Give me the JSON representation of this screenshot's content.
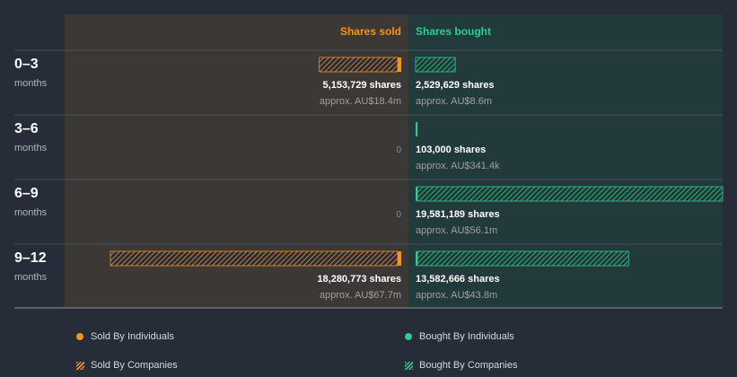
{
  "chart_data": {
    "type": "bar",
    "categories": [
      {
        "range": "0–3",
        "unit": "months"
      },
      {
        "range": "3–6",
        "unit": "months"
      },
      {
        "range": "6–9",
        "unit": "months"
      },
      {
        "range": "9–12",
        "unit": "months"
      }
    ],
    "sold_header": "Shares sold",
    "bought_header": "Shares bought",
    "sold": [
      {
        "individuals": 150000,
        "companies": 5003729,
        "shares_label": "5,153,729 shares",
        "value_label": "approx. AU$18.4m"
      },
      {
        "individuals": 0,
        "companies": 0,
        "zero_label": "0"
      },
      {
        "individuals": 0,
        "companies": 0,
        "zero_label": "0"
      },
      {
        "individuals": 120000,
        "companies": 18160773,
        "shares_label": "18,280,773 shares",
        "value_label": "approx. AU$67.7m"
      }
    ],
    "bought": [
      {
        "individuals": 0,
        "companies": 2529629,
        "shares_label": "2,529,629 shares",
        "value_label": "approx. AU$8.6m"
      },
      {
        "individuals": 103000,
        "companies": 0,
        "shares_label": "103,000 shares",
        "value_label": "approx. AU$341.4k"
      },
      {
        "individuals": 120000,
        "companies": 19461189,
        "shares_label": "19,581,189 shares",
        "value_label": "approx. AU$56.1m"
      },
      {
        "individuals": 110000,
        "companies": 13472666,
        "shares_label": "13,582,666 shares",
        "value_label": "approx. AU$43.8m"
      }
    ],
    "max_value": 19581189,
    "colors": {
      "sold": "#f7931e",
      "bought": "#2ecc8f",
      "sold_panel": "#3b3835",
      "bought_panel": "#233a3d",
      "background": "#262c38"
    }
  },
  "legend": [
    {
      "label": "Sold By Individuals",
      "style": "dot",
      "color": "#f7931e"
    },
    {
      "label": "Bought By Individuals",
      "style": "dot",
      "color": "#2ecc8f"
    },
    {
      "label": "Sold By Companies",
      "style": "hatch",
      "color": "#f7931e"
    },
    {
      "label": "Bought By Companies",
      "style": "hatch",
      "color": "#2ecc8f"
    }
  ]
}
